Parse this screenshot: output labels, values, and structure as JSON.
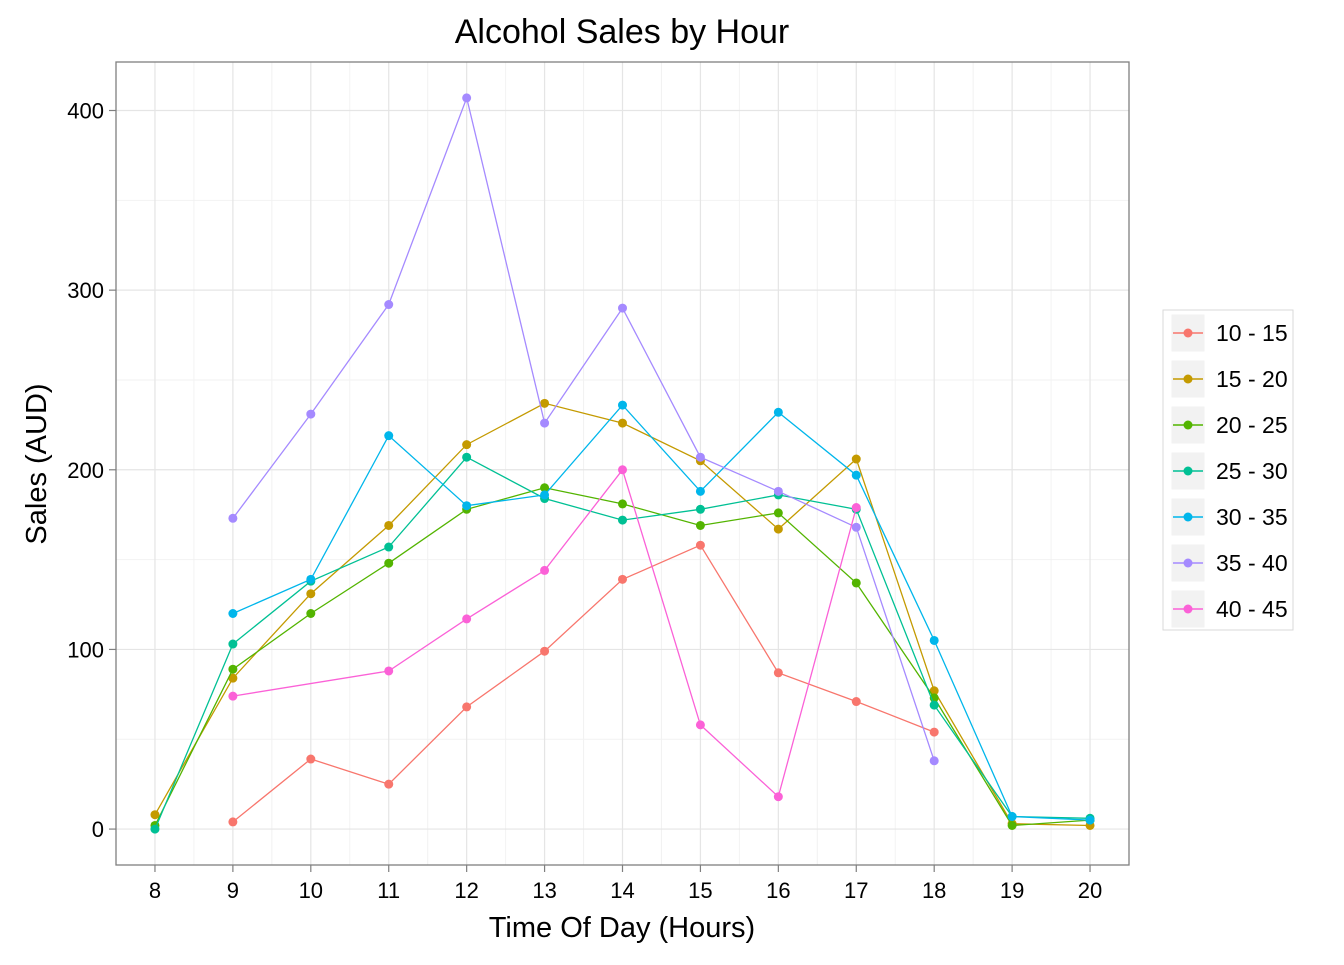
{
  "chart_data": {
    "type": "line",
    "title": "Alcohol Sales by Hour",
    "xlabel": "Time Of Day (Hours)",
    "ylabel": "Sales (AUD)",
    "x_ticks": [
      8,
      9,
      10,
      11,
      12,
      13,
      14,
      15,
      16,
      17,
      18,
      19,
      20
    ],
    "y_ticks": [
      0,
      100,
      200,
      300,
      400
    ],
    "xlim": [
      7.5,
      20.5
    ],
    "ylim": [
      -20,
      427
    ],
    "grid": true,
    "legend_position": "right",
    "series": [
      {
        "name": "10 - 15",
        "color": "#F8766D",
        "points": [
          [
            9,
            4
          ],
          [
            10,
            39
          ],
          [
            11,
            25
          ],
          [
            12,
            68
          ],
          [
            13,
            99
          ],
          [
            14,
            139
          ],
          [
            15,
            158
          ],
          [
            16,
            87
          ],
          [
            17,
            71
          ],
          [
            18,
            54
          ]
        ]
      },
      {
        "name": "15 - 20",
        "color": "#C49A00",
        "points": [
          [
            8,
            8
          ],
          [
            9,
            84
          ],
          [
            10,
            131
          ],
          [
            11,
            169
          ],
          [
            12,
            214
          ],
          [
            13,
            237
          ],
          [
            14,
            226
          ],
          [
            15,
            205
          ],
          [
            16,
            167
          ],
          [
            17,
            206
          ],
          [
            18,
            77
          ],
          [
            19,
            3
          ],
          [
            20,
            2
          ]
        ]
      },
      {
        "name": "20 - 25",
        "color": "#53B400",
        "points": [
          [
            8,
            2
          ],
          [
            9,
            89
          ],
          [
            10,
            120
          ],
          [
            11,
            148
          ],
          [
            12,
            178
          ],
          [
            13,
            190
          ],
          [
            14,
            181
          ],
          [
            15,
            169
          ],
          [
            16,
            176
          ],
          [
            17,
            137
          ],
          [
            18,
            73
          ],
          [
            19,
            2
          ],
          [
            20,
            5
          ]
        ]
      },
      {
        "name": "25 - 30",
        "color": "#00C094",
        "points": [
          [
            8,
            0
          ],
          [
            9,
            103
          ],
          [
            10,
            138
          ],
          [
            11,
            157
          ],
          [
            12,
            207
          ],
          [
            13,
            184
          ],
          [
            14,
            172
          ],
          [
            15,
            178
          ],
          [
            16,
            186
          ],
          [
            17,
            178
          ],
          [
            18,
            69
          ],
          [
            19,
            7
          ],
          [
            20,
            6
          ]
        ]
      },
      {
        "name": "30 - 35",
        "color": "#00B6EB",
        "points": [
          [
            9,
            120
          ],
          [
            10,
            139
          ],
          [
            11,
            219
          ],
          [
            12,
            180
          ],
          [
            13,
            186
          ],
          [
            14,
            236
          ],
          [
            15,
            188
          ],
          [
            16,
            232
          ],
          [
            17,
            197
          ],
          [
            18,
            105
          ],
          [
            19,
            7
          ],
          [
            20,
            5
          ]
        ]
      },
      {
        "name": "35 - 40",
        "color": "#A58AFF",
        "points": [
          [
            9,
            173
          ],
          [
            10,
            231
          ],
          [
            11,
            292
          ],
          [
            12,
            407
          ],
          [
            13,
            226
          ],
          [
            14,
            290
          ],
          [
            15,
            207
          ],
          [
            16,
            188
          ],
          [
            17,
            168
          ],
          [
            18,
            38
          ]
        ]
      },
      {
        "name": "40 - 45",
        "color": "#FB61D7",
        "points": [
          [
            9,
            74
          ],
          [
            11,
            88
          ],
          [
            12,
            117
          ],
          [
            13,
            144
          ],
          [
            14,
            200
          ],
          [
            15,
            58
          ],
          [
            16,
            18
          ],
          [
            17,
            179
          ]
        ]
      }
    ]
  }
}
